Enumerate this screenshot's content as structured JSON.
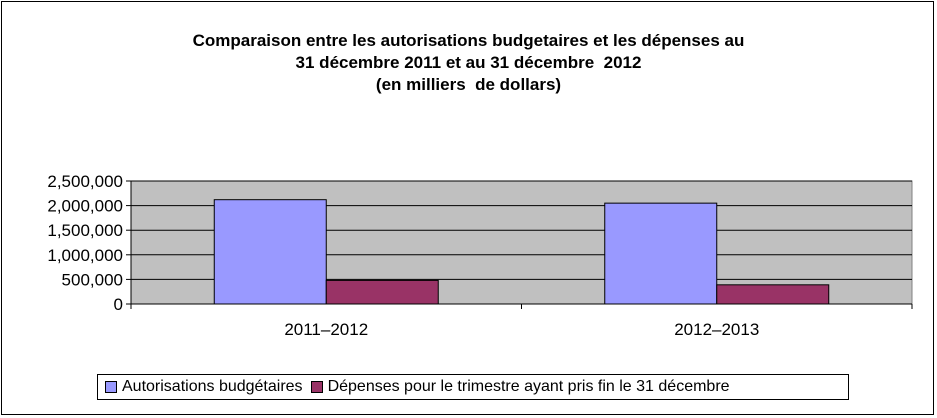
{
  "chart_data": {
    "type": "bar",
    "title": [
      "Comparaison entre les autorisations budgetaires et les dépenses au",
      "31 décembre 2011 et au 31 décembre  2012",
      "(en milliers  de dollars)"
    ],
    "categories": [
      "2011–2012",
      "2012–2013"
    ],
    "series": [
      {
        "name": "Autorisations budgétaires",
        "values": [
          2120000,
          2050000
        ],
        "color": "#9999ff"
      },
      {
        "name": "Dépenses pour le trimestre ayant pris fin le 31 décembre",
        "values": [
          480000,
          390000
        ],
        "color": "#993366"
      }
    ],
    "y_ticks": [
      "0",
      "500,000",
      "1,000,000",
      "1,500,000",
      "2,000,000",
      "2,500,000"
    ],
    "ylim": [
      0,
      2500000
    ],
    "plot_background": "#c0c0c0",
    "grid": true,
    "legend_position": "bottom"
  }
}
